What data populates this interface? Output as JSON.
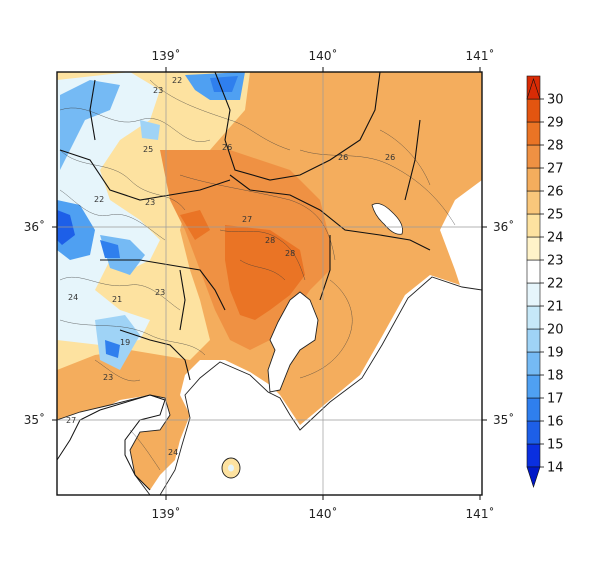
{
  "map": {
    "lon_ticks": [
      "139˚",
      "140˚",
      "141˚"
    ],
    "lat_ticks": [
      "36˚",
      "35˚"
    ],
    "contour_labels": [
      "22",
      "23",
      "25",
      "26",
      "27",
      "28",
      "24",
      "21",
      "19"
    ],
    "colorbar": {
      "levels": [
        "14",
        "15",
        "16",
        "17",
        "18",
        "19",
        "20",
        "21",
        "22",
        "23",
        "24",
        "25",
        "26",
        "27",
        "28",
        "29",
        "30"
      ],
      "colors": [
        "#0a2fe0",
        "#1d5fe8",
        "#2f7fee",
        "#4fa0f2",
        "#75baf4",
        "#9fd3f6",
        "#c6e8f8",
        "#e6f5fb",
        "#ffffff",
        "#fff3c9",
        "#fde2a0",
        "#f9c77b",
        "#f4ad5d",
        "#ef9143",
        "#ea7425",
        "#e35510",
        "#d92b05"
      ]
    },
    "colors": {
      "land_warm": "#f4ad5d",
      "land_hot": "#ea7425",
      "mountain_cool": "#75baf4",
      "sea": "#ffffff",
      "grid": "#9a9a9a"
    }
  }
}
